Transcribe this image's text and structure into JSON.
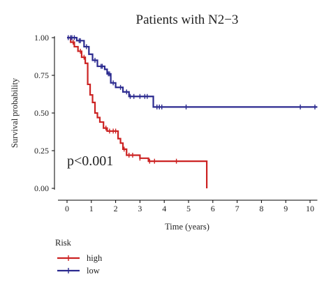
{
  "chart_data": {
    "type": "line",
    "chart_kind": "kaplan-meier survival curve",
    "title": "Patients with N2−3",
    "xlabel": "Time (years)",
    "ylabel": "Survival probability",
    "xlim": [
      0,
      10.3
    ],
    "ylim": [
      0,
      1
    ],
    "xticks": [
      "0",
      "1",
      "2",
      "3",
      "4",
      "5",
      "6",
      "7",
      "8",
      "9",
      "10"
    ],
    "yticks": [
      "0.00",
      "0.25",
      "0.50",
      "0.75",
      "1.00"
    ],
    "grid": false,
    "annotation": "p<0.001",
    "legend": {
      "title": "Risk",
      "position": "bottom-left"
    },
    "series": [
      {
        "name": "high",
        "color": "#cc2222",
        "steps": [
          [
            0,
            1.0
          ],
          [
            0.15,
            0.97
          ],
          [
            0.3,
            0.94
          ],
          [
            0.45,
            0.91
          ],
          [
            0.6,
            0.87
          ],
          [
            0.75,
            0.83
          ],
          [
            0.85,
            0.69
          ],
          [
            0.95,
            0.62
          ],
          [
            1.05,
            0.57
          ],
          [
            1.15,
            0.5
          ],
          [
            1.25,
            0.47
          ],
          [
            1.35,
            0.44
          ],
          [
            1.5,
            0.4
          ],
          [
            1.65,
            0.38
          ],
          [
            2.1,
            0.33
          ],
          [
            2.2,
            0.3
          ],
          [
            2.3,
            0.26
          ],
          [
            2.45,
            0.22
          ],
          [
            3.0,
            0.2
          ],
          [
            3.35,
            0.18
          ],
          [
            5.75,
            0.0
          ]
        ],
        "end": 5.75,
        "censored": [
          0.25,
          0.55,
          0.7,
          1.6,
          1.75,
          1.9,
          2.0,
          2.35,
          2.55,
          2.7,
          3.0,
          3.4,
          3.6,
          4.5
        ]
      },
      {
        "name": "low",
        "color": "#2b2a8f",
        "steps": [
          [
            0,
            1.0
          ],
          [
            0.4,
            0.98
          ],
          [
            0.7,
            0.94
          ],
          [
            0.9,
            0.89
          ],
          [
            1.05,
            0.85
          ],
          [
            1.25,
            0.81
          ],
          [
            1.55,
            0.79
          ],
          [
            1.65,
            0.76
          ],
          [
            1.8,
            0.7
          ],
          [
            2.0,
            0.67
          ],
          [
            2.3,
            0.64
          ],
          [
            2.55,
            0.61
          ],
          [
            3.55,
            0.54
          ]
        ],
        "end": 10.3,
        "censored": [
          0.05,
          0.15,
          0.2,
          0.3,
          0.5,
          0.55,
          0.8,
          1.15,
          1.4,
          1.45,
          1.7,
          1.75,
          1.9,
          2.2,
          2.45,
          2.6,
          2.75,
          3.0,
          3.2,
          3.3,
          3.7,
          3.8,
          3.9,
          4.9,
          9.6,
          10.2
        ]
      }
    ]
  }
}
